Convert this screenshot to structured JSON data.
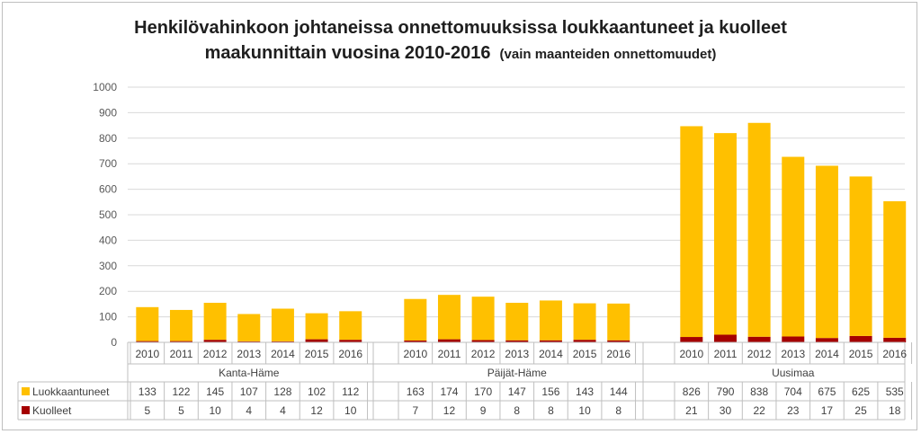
{
  "chart_data": {
    "type": "bar",
    "stacked": true,
    "title": "Henkilövahinkoon johtaneissa onnettomuuksissa loukkaantuneet ja kuolleet",
    "title_line2": "maakunnittain vuosina 2010-2016",
    "subtitle": "(vain maanteiden onnettomuudet)",
    "ylim": [
      0,
      1000
    ],
    "yticks": [
      0,
      100,
      200,
      300,
      400,
      500,
      600,
      700,
      800,
      900,
      1000
    ],
    "grid": true,
    "legend": "data-table",
    "groups": [
      {
        "name": "Kanta-Häme",
        "years": [
          "2010",
          "2011",
          "2012",
          "2013",
          "2014",
          "2015",
          "2016"
        ]
      },
      {
        "name": "Päijät-Häme",
        "years": [
          "2010",
          "2011",
          "2012",
          "2013",
          "2014",
          "2015",
          "2016"
        ]
      },
      {
        "name": "Uusimaa",
        "years": [
          "2010",
          "2011",
          "2012",
          "2013",
          "2014",
          "2015",
          "2016"
        ]
      }
    ],
    "series": [
      {
        "name": "Luokkaantuneet",
        "color": "#ffc000",
        "values": [
          [
            133,
            122,
            145,
            107,
            128,
            102,
            112
          ],
          [
            163,
            174,
            170,
            147,
            156,
            143,
            144
          ],
          [
            826,
            790,
            838,
            704,
            675,
            625,
            535
          ]
        ]
      },
      {
        "name": "Kuolleet",
        "color": "#a50000",
        "values": [
          [
            5,
            5,
            10,
            4,
            4,
            12,
            10
          ],
          [
            7,
            12,
            9,
            8,
            8,
            10,
            8
          ],
          [
            21,
            30,
            22,
            23,
            17,
            25,
            18
          ]
        ]
      }
    ]
  }
}
